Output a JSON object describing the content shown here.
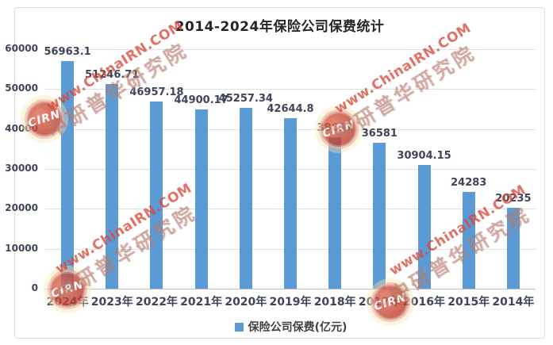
{
  "chart_data": {
    "type": "bar",
    "title": "2014-2024年保险公司保费统计",
    "categories": [
      "2024年",
      "2023年",
      "2022年",
      "2021年",
      "2020年",
      "2019年",
      "2018年",
      "2017年",
      "2016年",
      "2015年",
      "2014年"
    ],
    "values": [
      56963.1,
      51246.71,
      46957.18,
      44900.17,
      45257.34,
      42644.8,
      38017,
      36581,
      30904.15,
      24283,
      20235
    ],
    "value_labels": [
      "56963.1",
      "51246.71",
      "46957.18",
      "44900.17",
      "45257.34",
      "42644.8",
      "38017",
      "36581",
      "30904.15",
      "24283",
      "20235"
    ],
    "xlabel": "",
    "ylabel": "",
    "ylim": [
      0,
      60000
    ],
    "yticks": [
      0,
      10000,
      20000,
      30000,
      40000,
      50000,
      60000
    ],
    "grid": true,
    "legend": [
      "保险公司保费(亿元)"
    ],
    "legend_position": "bottom",
    "bar_color": "#5B9BD5"
  },
  "legend": {
    "label": "保险公司保费(亿元)",
    "swatch_color": "#5B9BD5"
  },
  "watermark": {
    "url_text": "www.ChinaIRN.COM",
    "org_text": "中研普华研究院",
    "stamp_text": "CIRN"
  },
  "colors": {
    "bar": "#5B9BD5",
    "gridline": "#E0E0E0",
    "axis_line": "#BFBFBF",
    "label_text": "#3F4458",
    "title_text": "#262626",
    "watermark_red": "#D8483A",
    "frame_border": "#D9D9D9"
  }
}
